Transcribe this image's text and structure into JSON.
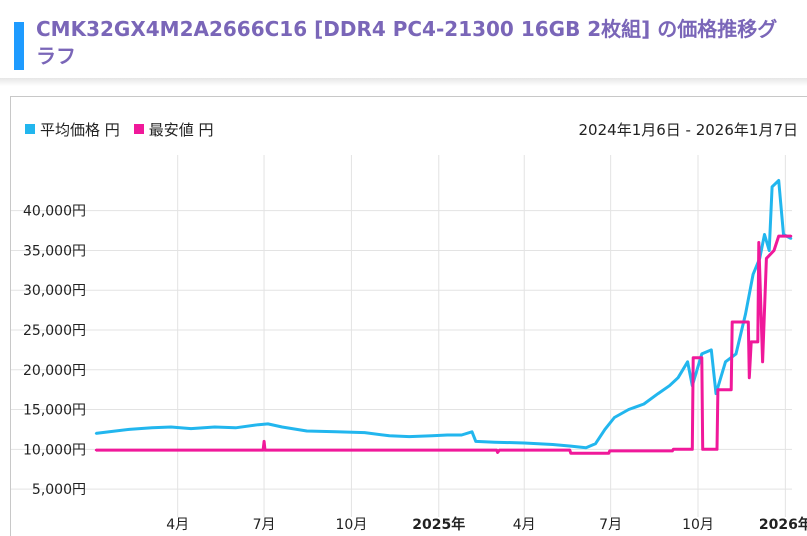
{
  "header": {
    "title": "CMK32GX4M2A2666C16 [DDR4 PC4-21300 16GB 2枚組] の価格推移グラフ",
    "accent_color": "#1e9bff",
    "title_color": "#7a66b8"
  },
  "chart_data": {
    "type": "line",
    "date_range": "2024年1月6日 - 2026年1月7日",
    "xlabel": "",
    "ylabel": "",
    "ylim": [
      3000,
      47000
    ],
    "xlim": [
      "2024-01-06",
      "2026-01-08"
    ],
    "grid": true,
    "legend_position": "top-left",
    "y_ticks": [
      {
        "value": 5000,
        "label": "5,000円"
      },
      {
        "value": 10000,
        "label": "10,000円"
      },
      {
        "value": 15000,
        "label": "15,000円"
      },
      {
        "value": 20000,
        "label": "20,000円"
      },
      {
        "value": 25000,
        "label": "25,000円"
      },
      {
        "value": 30000,
        "label": "30,000円"
      },
      {
        "value": 35000,
        "label": "35,000円"
      },
      {
        "value": 40000,
        "label": "40,000円"
      }
    ],
    "x_ticks": [
      {
        "date": "2024-04-01",
        "label": "4月",
        "bold": false
      },
      {
        "date": "2024-07-01",
        "label": "7月",
        "bold": false
      },
      {
        "date": "2024-10-01",
        "label": "10月",
        "bold": false
      },
      {
        "date": "2025-01-01",
        "label": "2025年",
        "bold": true
      },
      {
        "date": "2025-04-01",
        "label": "4月",
        "bold": false
      },
      {
        "date": "2025-07-01",
        "label": "7月",
        "bold": false
      },
      {
        "date": "2025-10-01",
        "label": "10月",
        "bold": false
      },
      {
        "date": "2026-01-01",
        "label": "2026年",
        "bold": true
      }
    ],
    "series": [
      {
        "name": "平均価格 円",
        "color": "#22b6ee",
        "points": [
          [
            "2024-01-06",
            12000
          ],
          [
            "2024-01-20",
            12200
          ],
          [
            "2024-02-10",
            12500
          ],
          [
            "2024-03-05",
            12700
          ],
          [
            "2024-03-25",
            12800
          ],
          [
            "2024-04-15",
            12600
          ],
          [
            "2024-05-10",
            12800
          ],
          [
            "2024-06-01",
            12700
          ],
          [
            "2024-06-25",
            13100
          ],
          [
            "2024-07-05",
            13200
          ],
          [
            "2024-07-20",
            12800
          ],
          [
            "2024-08-15",
            12300
          ],
          [
            "2024-09-15",
            12200
          ],
          [
            "2024-10-15",
            12100
          ],
          [
            "2024-11-10",
            11700
          ],
          [
            "2024-12-01",
            11600
          ],
          [
            "2024-12-25",
            11700
          ],
          [
            "2025-01-10",
            11800
          ],
          [
            "2025-01-25",
            11800
          ],
          [
            "2025-02-05",
            12200
          ],
          [
            "2025-02-09",
            11000
          ],
          [
            "2025-03-01",
            10900
          ],
          [
            "2025-04-01",
            10800
          ],
          [
            "2025-05-01",
            10600
          ],
          [
            "2025-05-20",
            10400
          ],
          [
            "2025-06-05",
            10200
          ],
          [
            "2025-06-15",
            10700
          ],
          [
            "2025-06-25",
            12500
          ],
          [
            "2025-07-05",
            14000
          ],
          [
            "2025-07-20",
            15000
          ],
          [
            "2025-08-05",
            15700
          ],
          [
            "2025-08-20",
            17000
          ],
          [
            "2025-09-01",
            18000
          ],
          [
            "2025-09-10",
            19000
          ],
          [
            "2025-09-20",
            21000
          ],
          [
            "2025-09-25",
            18000
          ],
          [
            "2025-10-05",
            22000
          ],
          [
            "2025-10-15",
            22500
          ],
          [
            "2025-10-20",
            17000
          ],
          [
            "2025-10-30",
            21000
          ],
          [
            "2025-11-10",
            22000
          ],
          [
            "2025-11-20",
            27000
          ],
          [
            "2025-11-28",
            32000
          ],
          [
            "2025-12-05",
            34000
          ],
          [
            "2025-12-10",
            37000
          ],
          [
            "2025-12-15",
            35000
          ],
          [
            "2025-12-18",
            43000
          ],
          [
            "2025-12-25",
            43800
          ],
          [
            "2025-12-30",
            37000
          ],
          [
            "2026-01-07",
            36500
          ]
        ]
      },
      {
        "name": "最安値 円",
        "color": "#f0199a",
        "points": [
          [
            "2024-01-06",
            9900
          ],
          [
            "2024-06-30",
            9900
          ],
          [
            "2024-07-01",
            11000
          ],
          [
            "2024-07-02",
            9900
          ],
          [
            "2025-03-03",
            9900
          ],
          [
            "2025-03-04",
            9600
          ],
          [
            "2025-03-06",
            9900
          ],
          [
            "2025-05-19",
            9900
          ],
          [
            "2025-05-20",
            9500
          ],
          [
            "2025-06-29",
            9500
          ],
          [
            "2025-06-30",
            9800
          ],
          [
            "2025-09-04",
            9800
          ],
          [
            "2025-09-05",
            10000
          ],
          [
            "2025-09-25",
            10000
          ],
          [
            "2025-09-26",
            21500
          ],
          [
            "2025-10-05",
            21500
          ],
          [
            "2025-10-06",
            10000
          ],
          [
            "2025-10-21",
            10000
          ],
          [
            "2025-10-22",
            17500
          ],
          [
            "2025-11-05",
            17500
          ],
          [
            "2025-11-06",
            26000
          ],
          [
            "2025-11-23",
            26000
          ],
          [
            "2025-11-24",
            19000
          ],
          [
            "2025-11-26",
            23500
          ],
          [
            "2025-12-03",
            23500
          ],
          [
            "2025-12-04",
            36000
          ],
          [
            "2025-12-08",
            21000
          ],
          [
            "2025-12-12",
            34000
          ],
          [
            "2025-12-20",
            35000
          ],
          [
            "2025-12-25",
            36800
          ],
          [
            "2026-01-07",
            36800
          ]
        ]
      }
    ]
  }
}
